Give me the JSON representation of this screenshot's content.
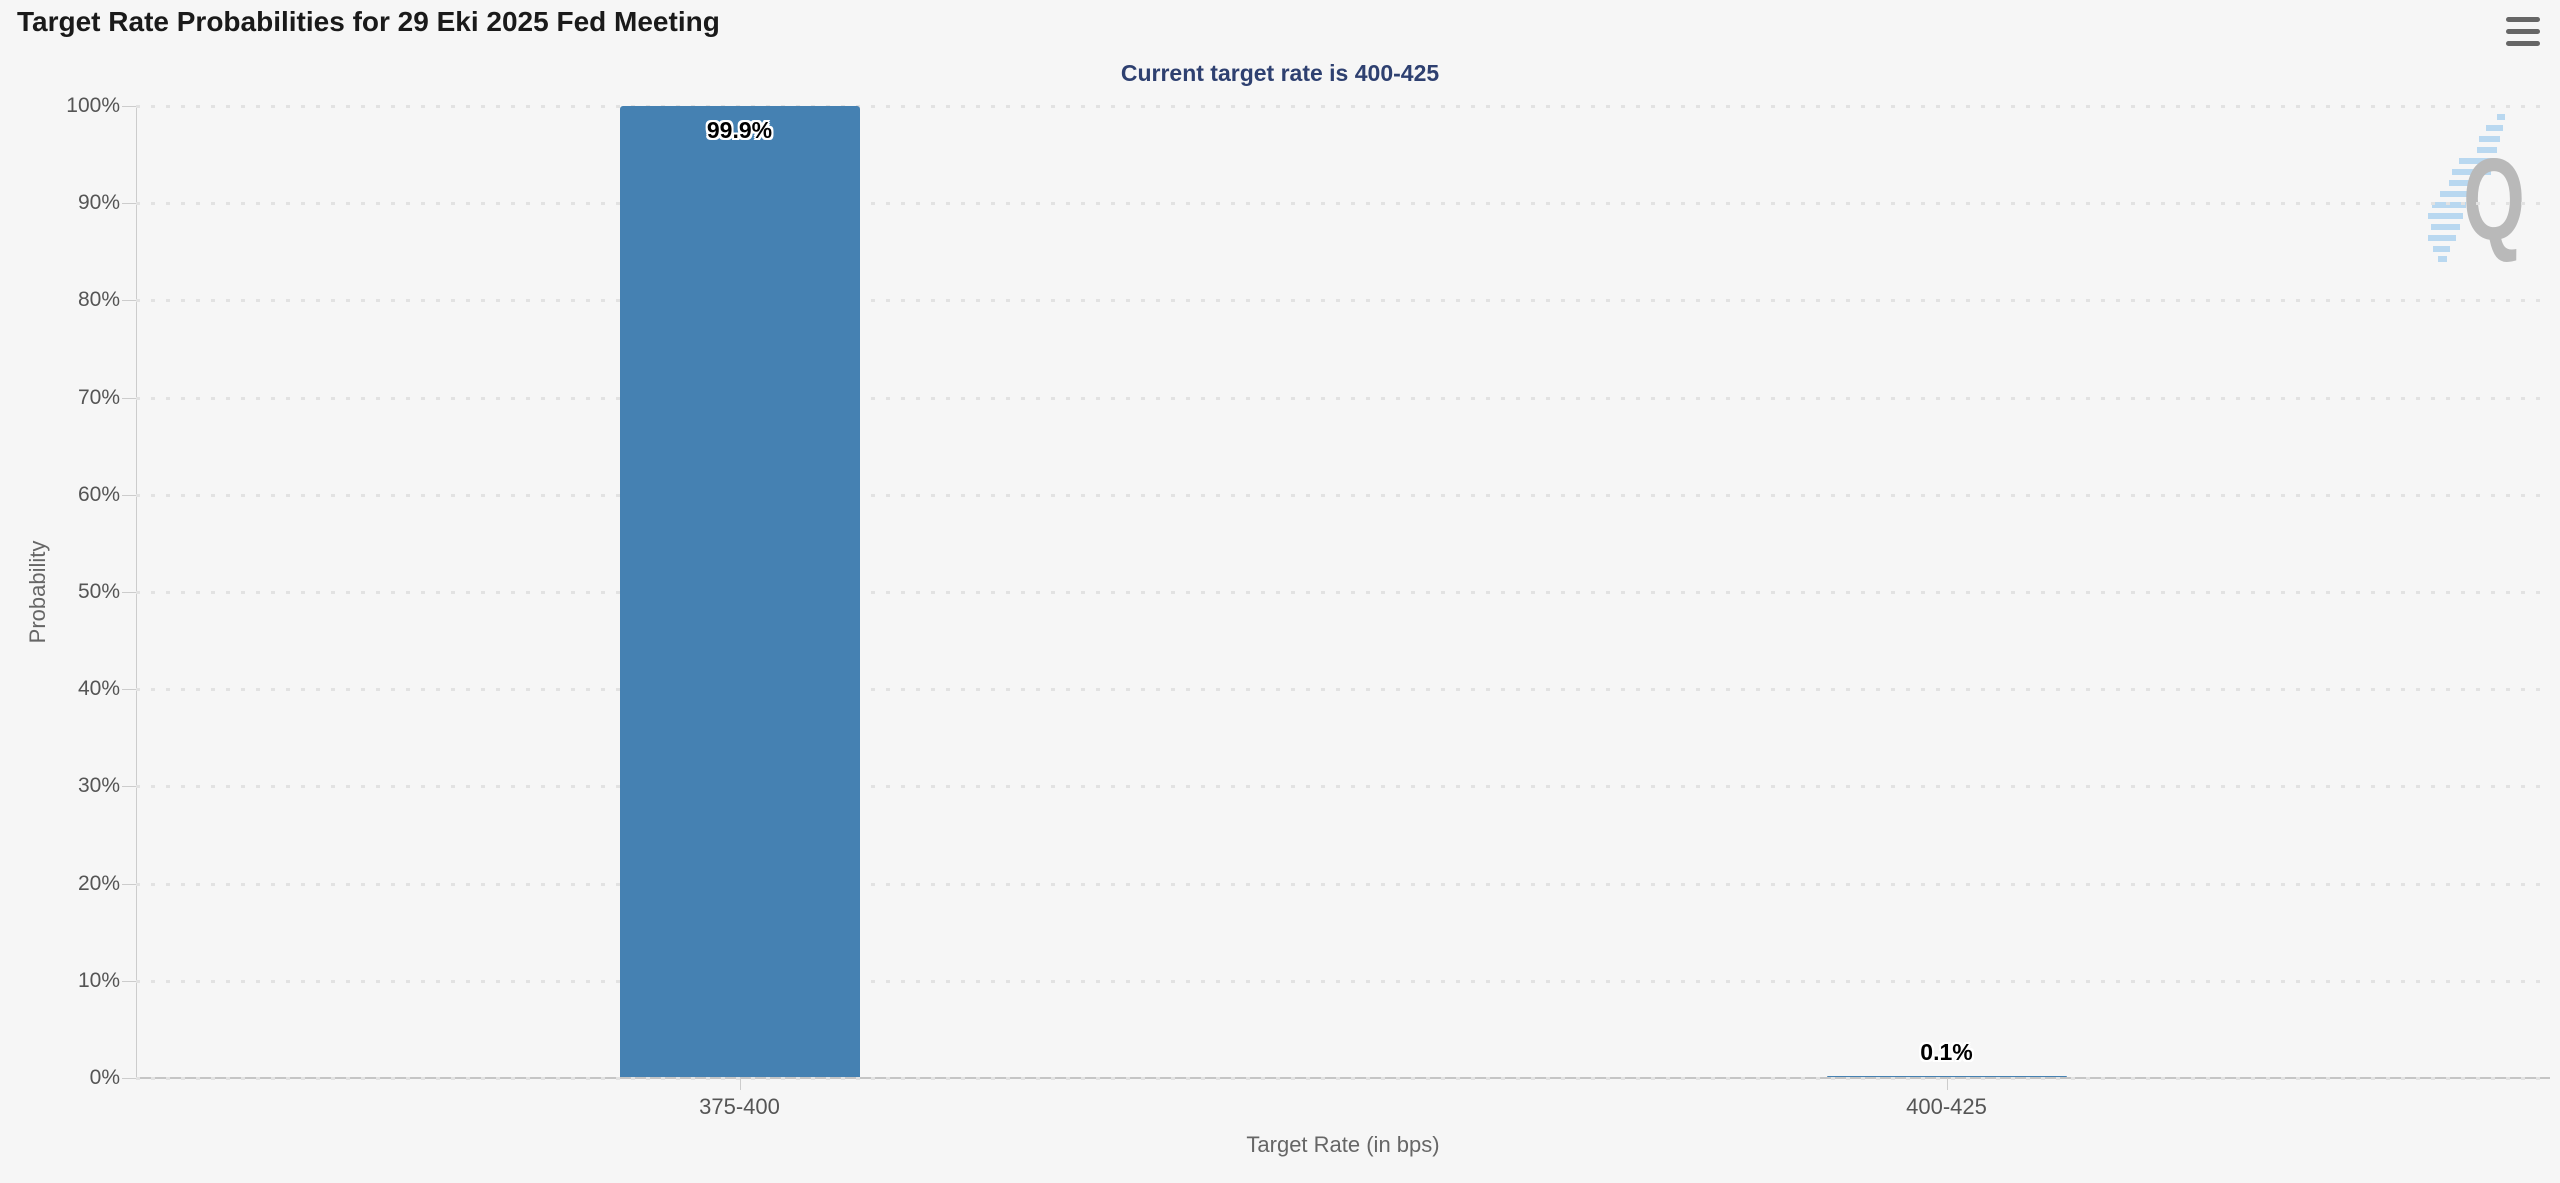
{
  "chart_data": {
    "type": "bar",
    "title": "Target Rate Probabilities for 29 Eki 2025 Fed Meeting",
    "subtitle": "Current target rate is 400-425",
    "xlabel": "Target Rate (in bps)",
    "ylabel": "Probability",
    "categories": [
      "375-400",
      "400-425"
    ],
    "values": [
      99.9,
      0.1
    ],
    "value_labels": [
      "99.9%",
      "0.1%"
    ],
    "ylim": [
      0,
      100
    ],
    "ytick_step": 10,
    "ytick_suffix": "%",
    "grid": "dotted",
    "legend": "none",
    "bar_color": "#4581b2",
    "subtitle_color": "#2e4070",
    "axis_text_color": "#555555",
    "axis_title_color": "#666666"
  },
  "controls": {
    "context_menu_icon": "hamburger-menu"
  },
  "watermark": {
    "letter": "Q"
  }
}
